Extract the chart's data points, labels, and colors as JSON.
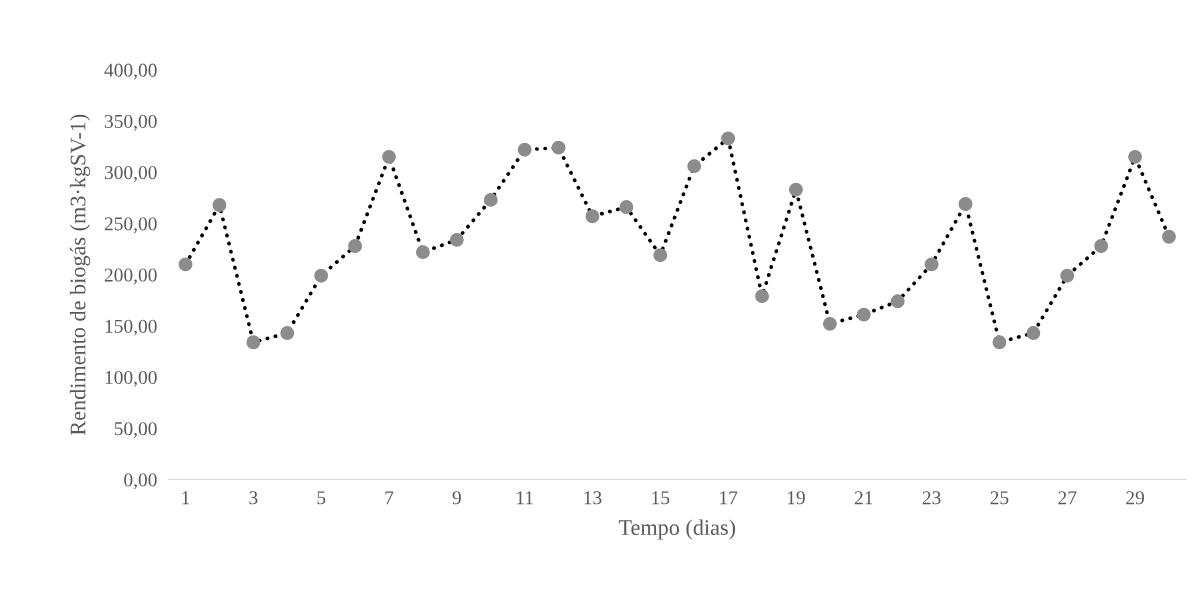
{
  "chart_data": {
    "type": "line",
    "xlabel": "Tempo (dias)",
    "ylabel": "Rendimento de biogás (m3·kgSV-1)",
    "categories": [
      "1",
      null,
      "3",
      null,
      "5",
      null,
      "7",
      null,
      "9",
      null,
      "11",
      null,
      "13",
      null,
      "15",
      null,
      "17",
      null,
      "19",
      null,
      "21",
      null,
      "23",
      null,
      "25",
      null,
      "27",
      null,
      "29",
      null
    ],
    "series": [
      {
        "color": "#8c8c8c",
        "values": [
          210,
          268,
          134,
          143,
          199,
          228,
          315,
          222,
          234,
          273,
          322,
          324,
          257,
          266,
          219,
          306,
          333,
          179,
          283,
          152,
          161,
          174,
          210,
          269,
          134,
          143,
          199,
          228,
          315,
          237
        ]
      }
    ],
    "ylim": [
      0,
      400
    ],
    "yticks": [
      {
        "value": 0,
        "label": "0,00"
      },
      {
        "value": 50,
        "label": "50,00"
      },
      {
        "value": 100,
        "label": "100,00"
      },
      {
        "value": 150,
        "label": "150,00"
      },
      {
        "value": 200,
        "label": "200,00"
      },
      {
        "value": 250,
        "label": "250,00"
      },
      {
        "value": 300,
        "label": "300,00"
      },
      {
        "value": 350,
        "label": "350,00"
      },
      {
        "value": 400,
        "label": "400,00"
      }
    ],
    "grid": false,
    "marker": "circle",
    "line_style": "dotted"
  }
}
